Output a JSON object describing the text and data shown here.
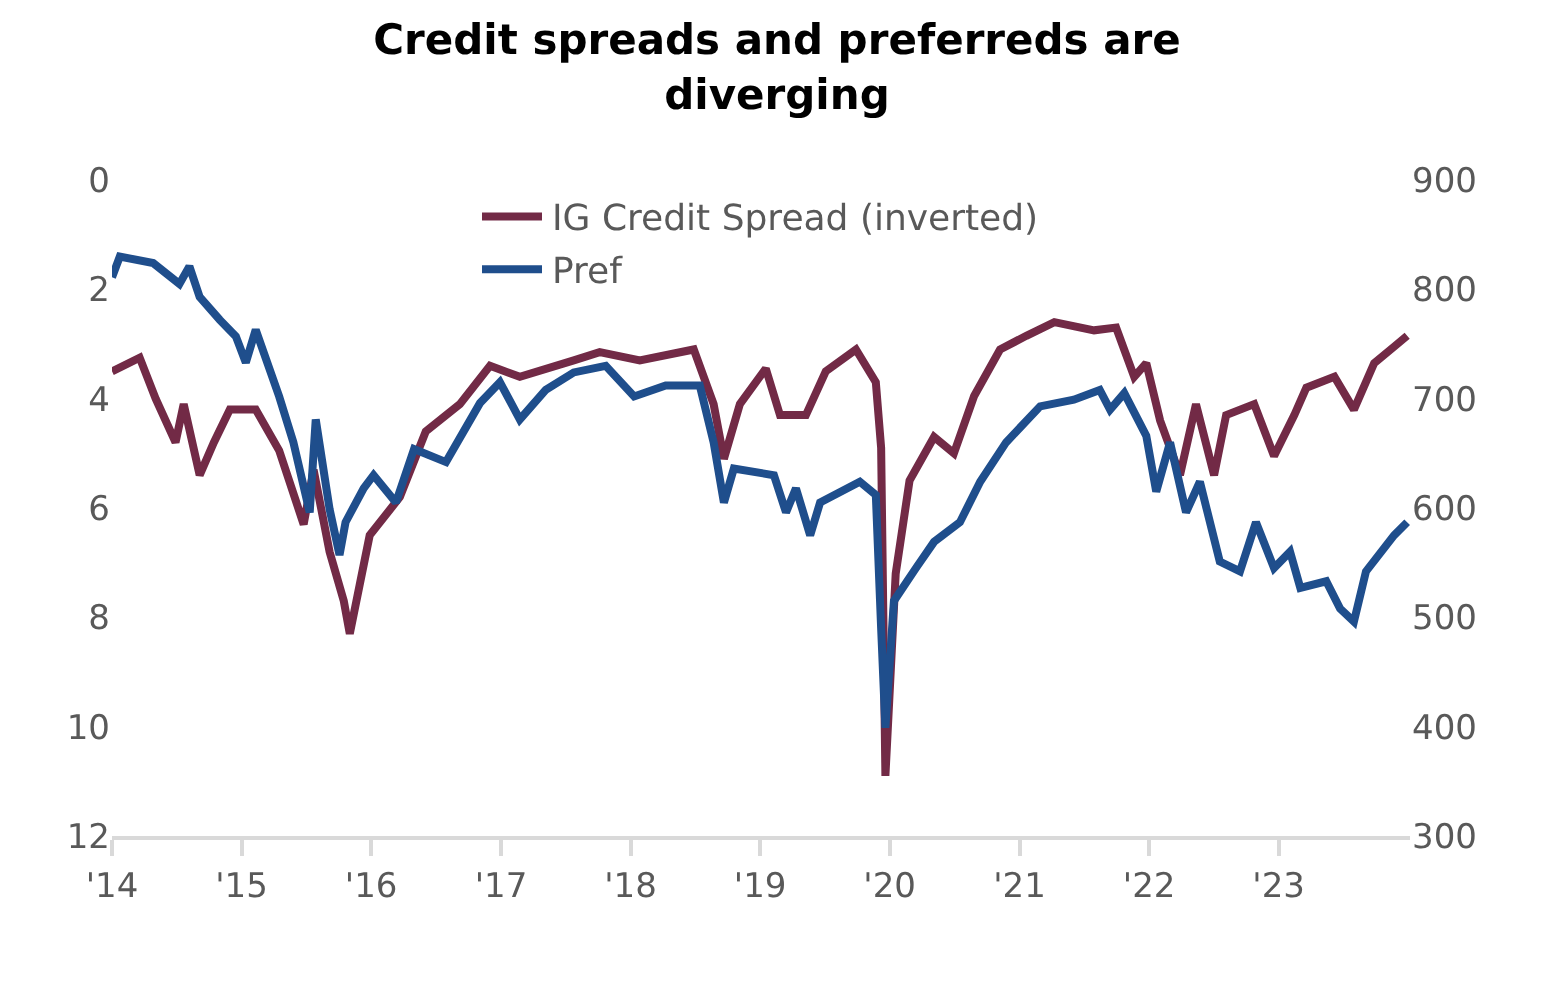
{
  "chart_data": {
    "type": "line",
    "title": "Credit spreads and preferreds are diverging",
    "xlim": [
      "2014-01-01",
      "2024-01-06"
    ],
    "xticks": [
      {
        "value": "2014-01-01",
        "label": "'14"
      },
      {
        "value": "2015-01-01",
        "label": "'15"
      },
      {
        "value": "2016-01-01",
        "label": "'16"
      },
      {
        "value": "2017-01-01",
        "label": "'17"
      },
      {
        "value": "2018-01-01",
        "label": "'18"
      },
      {
        "value": "2019-01-01",
        "label": "'19"
      },
      {
        "value": "2020-01-01",
        "label": "'20"
      },
      {
        "value": "2021-01-01",
        "label": "'21"
      },
      {
        "value": "2022-01-01",
        "label": "'22"
      },
      {
        "value": "2023-01-01",
        "label": "'23"
      }
    ],
    "ylim": [
      12,
      0
    ],
    "yticks": [
      0,
      2,
      4,
      6,
      8,
      10,
      12
    ],
    "y2lim": [
      300,
      900
    ],
    "y2ticks": [
      300,
      400,
      500,
      600,
      700,
      800,
      900
    ],
    "legend": "top",
    "line_style": "solid",
    "marker": "none",
    "series": [
      {
        "name": "IG Credit Spread (inverted)",
        "color": "#722a46",
        "x": [
          "2014-01-01",
          "2014-03-20",
          "2014-05-04",
          "2014-06-29",
          "2014-07-22",
          "2014-09-05",
          "2014-10-15",
          "2014-11-29",
          "2015-02-10",
          "2015-04-17",
          "2015-06-25",
          "2015-07-23",
          "2015-09-06",
          "2015-10-16",
          "2015-11-02",
          "2015-11-30",
          "2015-12-28",
          "2016-03-22",
          "2016-06-03",
          "2016-09-07",
          "2016-12-01",
          "2017-02-23",
          "2017-07-25",
          "2017-10-06",
          "2018-01-27",
          "2018-06-28",
          "2018-08-23",
          "2018-09-21",
          "2018-11-05",
          "2019-01-17",
          "2019-02-26",
          "2019-05-10",
          "2019-07-05",
          "2019-09-28",
          "2019-11-23",
          "2019-12-08",
          "2019-12-20",
          "2020-01-18",
          "2020-02-26",
          "2020-05-05",
          "2020-06-30",
          "2020-08-26",
          "2020-11-07",
          "2021-01-20",
          "2021-04-09",
          "2021-07-30",
          "2021-09-30",
          "2021-11-20",
          "2021-12-24",
          "2022-02-01",
          "2022-03-29",
          "2022-05-13",
          "2022-07-03",
          "2022-08-06",
          "2022-10-24",
          "2022-12-19",
          "2023-02-14",
          "2023-03-20",
          "2023-06-07",
          "2023-08-01",
          "2023-09-27",
          "2023-11-22",
          "2023-12-29"
        ],
        "values": [
          3.5,
          3.25,
          4.0,
          4.8,
          4.1,
          5.4,
          4.8,
          4.2,
          4.2,
          4.95,
          6.3,
          5.3,
          6.8,
          7.7,
          8.3,
          7.4,
          6.5,
          5.8,
          4.6,
          4.1,
          3.4,
          3.6,
          3.3,
          3.15,
          3.3,
          3.1,
          4.1,
          5.1,
          4.1,
          3.45,
          4.3,
          4.3,
          3.5,
          3.1,
          3.7,
          4.9,
          10.9,
          7.2,
          5.5,
          4.7,
          5.0,
          3.95,
          3.1,
          2.85,
          2.6,
          2.75,
          2.7,
          3.6,
          3.35,
          4.4,
          5.4,
          4.1,
          5.4,
          4.3,
          4.1,
          5.05,
          4.3,
          3.8,
          3.6,
          4.2,
          3.35,
          3.05,
          2.85
        ]
      },
      {
        "name": "Pref",
        "color": "#1f4e8c",
        "axis": "y2",
        "x": [
          "2014-01-01",
          "2014-01-23",
          "2014-04-27",
          "2014-07-10",
          "2014-08-07",
          "2014-09-05",
          "2014-11-01",
          "2014-12-16",
          "2015-01-13",
          "2015-02-10",
          "2015-04-17",
          "2015-05-27",
          "2015-07-12",
          "2015-07-29",
          "2015-09-06",
          "2015-10-04",
          "2015-10-21",
          "2015-12-11",
          "2016-01-08",
          "2016-03-11",
          "2016-05-01",
          "2016-07-30",
          "2016-11-03",
          "2016-12-29",
          "2017-02-23",
          "2017-05-07",
          "2017-07-25",
          "2017-10-23",
          "2018-01-11",
          "2018-04-10",
          "2018-07-15",
          "2018-08-23",
          "2018-09-21",
          "2018-10-19",
          "2019-02-09",
          "2019-03-15",
          "2019-04-12",
          "2019-05-22",
          "2019-06-19",
          "2019-10-09",
          "2019-11-23",
          "2019-12-08",
          "2019-12-20",
          "2020-01-13",
          "2020-03-15",
          "2020-05-05",
          "2020-07-17",
          "2020-09-12",
          "2020-11-24",
          "2021-02-28",
          "2021-06-03",
          "2021-08-15",
          "2021-09-13",
          "2021-10-23",
          "2021-12-24",
          "2022-01-21",
          "2022-03-01",
          "2022-04-15",
          "2022-05-24",
          "2022-07-19",
          "2022-09-14",
          "2022-10-29",
          "2022-12-19",
          "2023-02-02",
          "2023-03-03",
          "2023-05-15",
          "2023-06-23",
          "2023-08-01",
          "2023-09-04",
          "2023-11-22",
          "2023-12-29"
        ],
        "values": [
          811,
          830,
          824,
          805,
          821,
          793,
          772,
          757,
          733,
          763,
          702,
          660,
          596,
          681,
          599,
          557,
          587,
          618,
          630,
          605,
          654,
          642,
          696,
          715,
          681,
          708,
          724,
          730,
          702,
          712,
          712,
          660,
          605,
          636,
          630,
          596,
          618,
          575,
          605,
          624,
          612,
          490,
          399,
          515,
          545,
          569,
          587,
          624,
          660,
          693,
          699,
          708,
          690,
          705,
          666,
          615,
          660,
          596,
          624,
          551,
          542,
          587,
          545,
          560,
          527,
          533,
          508,
          496,
          542,
          575,
          587
        ]
      }
    ]
  }
}
